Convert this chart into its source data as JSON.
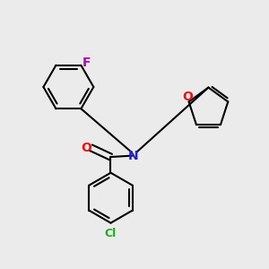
{
  "bg_color": "#ebebeb",
  "bond_color": "#000000",
  "N_color": "#2222cc",
  "O_color": "#ee1111",
  "F_color": "#bb00bb",
  "Cl_color": "#22aa22",
  "line_width": 1.5,
  "figsize": [
    3.0,
    3.0
  ],
  "dpi": 100,
  "xlim": [
    0,
    10
  ],
  "ylim": [
    0,
    10
  ]
}
